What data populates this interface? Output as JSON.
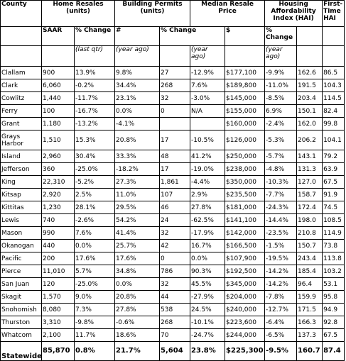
{
  "headers": {
    "county": "County",
    "home_resales": "Home Resales (units)",
    "building_permits": "Building Permits (units)",
    "median_resale": "Median Resale Price",
    "hai": "Housing Affordability Index (HAI)",
    "first_time_hai": "First-Time HAI"
  },
  "subheaders": {
    "saar": "SAAR",
    "pct_change_1": "% Change",
    "hash": "#",
    "pct_change_2": "% Change",
    "dollar": "$",
    "pct_change_3": "% Change"
  },
  "notes": {
    "last_qtr": "(last qtr)",
    "year_ago_1": "(year ago)",
    "year_ago_2": "(year ago)",
    "year_ago_3": "(year ago)"
  },
  "rows": [
    {
      "county": "Clallam",
      "saar": "900",
      "resale_qtr": "13.9%",
      "resale_yr": "9.8%",
      "permits": "27",
      "permits_chg": "-12.9%",
      "price": "$177,100",
      "price_chg": "-9.9%",
      "hai": "162.6",
      "ft_hai": "86.5"
    },
    {
      "county": "Clark",
      "saar": "6,060",
      "resale_qtr": "-0.2%",
      "resale_yr": "34.4%",
      "permits": "268",
      "permits_chg": "7.6%",
      "price": "$189,800",
      "price_chg": "-11.0%",
      "hai": "191.5",
      "ft_hai": "104.3"
    },
    {
      "county": "Cowlitz",
      "saar": "1,440",
      "resale_qtr": "-11.7%",
      "resale_yr": "23.1%",
      "permits": "32",
      "permits_chg": "-3.0%",
      "price": "$145,000",
      "price_chg": "-8.5%",
      "hai": "203.4",
      "ft_hai": "114.5"
    },
    {
      "county": "Ferry",
      "saar": "100",
      "resale_qtr": "-16.7%",
      "resale_yr": "0.0%",
      "permits": "0",
      "permits_chg": "N/A",
      "price": "$155,000",
      "price_chg": "6.9%",
      "hai": "150.1",
      "ft_hai": "82.4"
    },
    {
      "county": "Grant",
      "saar": "1,180",
      "resale_qtr": "-13.2%",
      "resale_yr": "-4.1%",
      "permits": "",
      "permits_chg": "",
      "price": "$160,000",
      "price_chg": "-2.4%",
      "hai": "162.0",
      "ft_hai": "99.8"
    },
    {
      "county": "Grays Harbor",
      "saar": "1,510",
      "resale_qtr": "15.3%",
      "resale_yr": "20.8%",
      "permits": "17",
      "permits_chg": "-10.5%",
      "price": "$126,000",
      "price_chg": "-5.3%",
      "hai": "206.2",
      "ft_hai": "104.1",
      "tall": true
    },
    {
      "county": "Island",
      "saar": "2,960",
      "resale_qtr": "30.4%",
      "resale_yr": "33.3%",
      "permits": "48",
      "permits_chg": "41.2%",
      "price": "$250,000",
      "price_chg": "-5.7%",
      "hai": "143.1",
      "ft_hai": "79.2"
    },
    {
      "county": "Jefferson",
      "saar": "360",
      "resale_qtr": "-25.0%",
      "resale_yr": "-18.2%",
      "permits": "17",
      "permits_chg": "-19.0%",
      "price": "$238,000",
      "price_chg": "-4.8%",
      "hai": "131.3",
      "ft_hai": "63.9"
    },
    {
      "county": "King",
      "saar": "22,310",
      "resale_qtr": "-5.2%",
      "resale_yr": "27.3%",
      "permits": "1,861",
      "permits_chg": "-4.4%",
      "price": "$350,000",
      "price_chg": "-10.3%",
      "hai": "127.0",
      "ft_hai": "67.5"
    },
    {
      "county": "Kitsap",
      "saar": "2,920",
      "resale_qtr": "2.5%",
      "resale_yr": "11.0%",
      "permits": "107",
      "permits_chg": "2.9%",
      "price": "$235,500",
      "price_chg": "-7.7%",
      "hai": "158.7",
      "ft_hai": "91.9"
    },
    {
      "county": "Kittitas",
      "saar": "1,230",
      "resale_qtr": "28.1%",
      "resale_yr": "29.5%",
      "permits": "46",
      "permits_chg": "27.8%",
      "price": "$181,000",
      "price_chg": "-24.3%",
      "hai": "172.4",
      "ft_hai": "74.5"
    },
    {
      "county": "Lewis",
      "saar": "740",
      "resale_qtr": "-2.6%",
      "resale_yr": "54.2%",
      "permits": "24",
      "permits_chg": "-62.5%",
      "price": "$141,100",
      "price_chg": "-14.4%",
      "hai": "198.0",
      "ft_hai": "108.5"
    },
    {
      "county": "Mason",
      "saar": "990",
      "resale_qtr": "7.6%",
      "resale_yr": "41.4%",
      "permits": "32",
      "permits_chg": "-17.9%",
      "price": "$142,000",
      "price_chg": "-23.5%",
      "hai": "210.8",
      "ft_hai": "114.9"
    },
    {
      "county": "Okanogan",
      "saar": "440",
      "resale_qtr": "0.0%",
      "resale_yr": "25.7%",
      "permits": "42",
      "permits_chg": "16.7%",
      "price": "$166,500",
      "price_chg": "-1.5%",
      "hai": "150.7",
      "ft_hai": "73.8"
    },
    {
      "county": "Pacific",
      "saar": "200",
      "resale_qtr": "17.6%",
      "resale_yr": "17.6%",
      "permits": "0",
      "permits_chg": "0.0%",
      "price": "$107,900",
      "price_chg": "-19.5%",
      "hai": "243.4",
      "ft_hai": "113.8"
    },
    {
      "county": "Pierce",
      "saar": "11,010",
      "resale_qtr": "5.7%",
      "resale_yr": "34.8%",
      "permits": "786",
      "permits_chg": "90.3%",
      "price": "$192,500",
      "price_chg": "-14.2%",
      "hai": "185.4",
      "ft_hai": "103.2"
    },
    {
      "county": "San Juan",
      "saar": "120",
      "resale_qtr": "-25.0%",
      "resale_yr": "0.0%",
      "permits": "32",
      "permits_chg": "45.5%",
      "price": "$345,000",
      "price_chg": "-14.2%",
      "hai": "96.4",
      "ft_hai": "53.1"
    },
    {
      "county": "Skagit",
      "saar": "1,570",
      "resale_qtr": "9.0%",
      "resale_yr": "20.8%",
      "permits": "44",
      "permits_chg": "-27.9%",
      "price": "$204,000",
      "price_chg": "-7.8%",
      "hai": "159.9",
      "ft_hai": "95.8"
    },
    {
      "county": "Snohomish",
      "saar": "8,080",
      "resale_qtr": "7.3%",
      "resale_yr": "27.8%",
      "permits": "538",
      "permits_chg": "24.5%",
      "price": "$240,000",
      "price_chg": "-12.7%",
      "hai": "171.5",
      "ft_hai": "94.9"
    },
    {
      "county": "Thurston",
      "saar": "3,310",
      "resale_qtr": "-9.8%",
      "resale_yr": "-0.6%",
      "permits": "268",
      "permits_chg": "-10.1%",
      "price": "$223,600",
      "price_chg": "-6.4%",
      "hai": "166.3",
      "ft_hai": "92.8"
    },
    {
      "county": "Whatcom",
      "saar": "2,100",
      "resale_qtr": "11.7%",
      "resale_yr": "18.6%",
      "permits": "70",
      "permits_chg": "-24.7%",
      "price": "$244,000",
      "price_chg": "-6.5%",
      "hai": "137.3",
      "ft_hai": "67.5"
    }
  ],
  "total": {
    "county": "Statewide",
    "saar": "85,870",
    "resale_qtr": "0.8%",
    "resale_yr": "21.7%",
    "permits": "5,604",
    "permits_chg": "23.8%",
    "price": "$225,300",
    "price_chg": "-9.5%",
    "hai": "160.7",
    "ft_hai": "87.4"
  }
}
